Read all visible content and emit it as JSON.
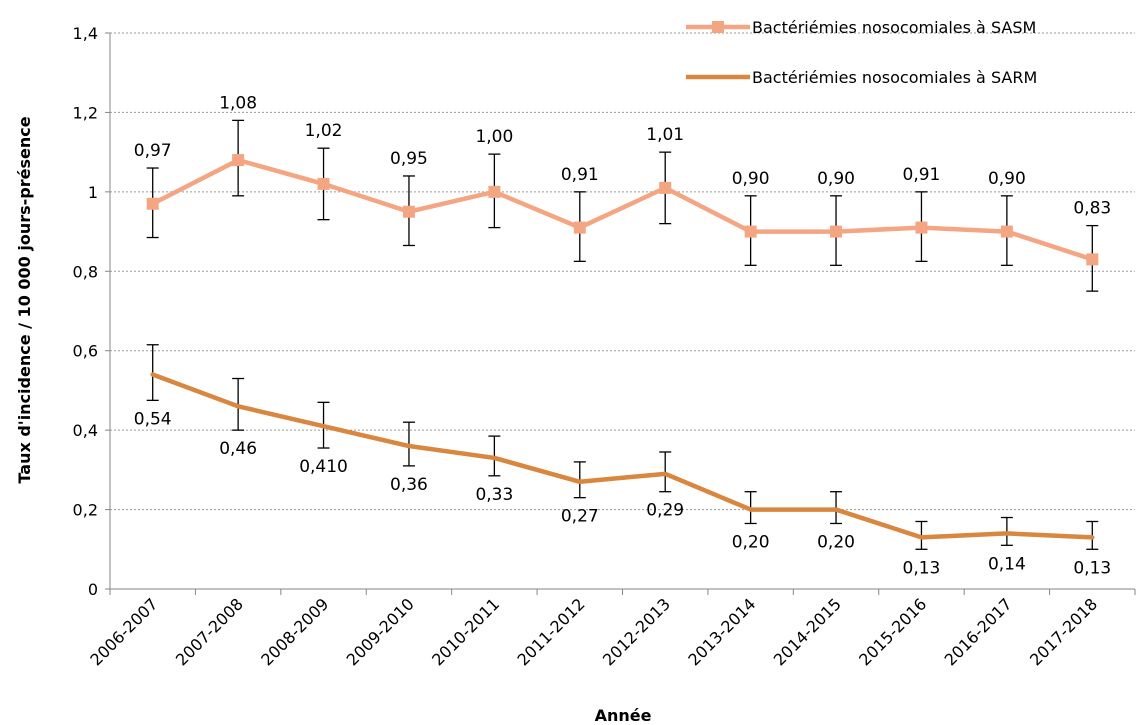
{
  "chart_data": {
    "type": "line",
    "title": "",
    "xlabel": "Année",
    "ylabel": "Taux d'incidence  / 10 000 jours-présence",
    "categories": [
      "2006-2007",
      "2007-2008",
      "2008-2009",
      "2009-2010",
      "2010-2011",
      "2011-2012",
      "2012-2013",
      "2013-2014",
      "2014-2015",
      "2015-2016",
      "2016-2017",
      "2017-2018"
    ],
    "ylim": [
      0,
      1.4
    ],
    "yticks": [
      0,
      0.2,
      0.4,
      0.6,
      0.8,
      1,
      1.2,
      1.4
    ],
    "ytick_labels": [
      "0",
      "0,2",
      "0,4",
      "0,6",
      "0,8",
      "1",
      "1,2",
      "1,4"
    ],
    "grid": "horizontal dotted",
    "legend_position": "top-right",
    "series": [
      {
        "name": "Bactériémies nosocomiales à SASM",
        "color": "#F4A582",
        "marker": "square",
        "values": [
          0.97,
          1.08,
          1.02,
          0.95,
          1.0,
          0.91,
          1.01,
          0.9,
          0.9,
          0.91,
          0.9,
          0.83
        ],
        "labels": [
          "0,97",
          "1,08",
          "1,02",
          "0,95",
          "1,00",
          "0,91",
          "1,01",
          "0,90",
          "0,90",
          "0,91",
          "0,90",
          "0,83"
        ],
        "error_low": [
          0.885,
          0.99,
          0.93,
          0.865,
          0.91,
          0.825,
          0.92,
          0.815,
          0.815,
          0.825,
          0.815,
          0.75
        ],
        "error_high": [
          1.06,
          1.18,
          1.11,
          1.04,
          1.095,
          1.0,
          1.1,
          0.99,
          0.99,
          1.0,
          0.99,
          0.915
        ],
        "label_position": "above"
      },
      {
        "name": "Bactériémies nosocomiales à SARM",
        "color": "#D9863E",
        "marker": "none",
        "values": [
          0.54,
          0.46,
          0.41,
          0.36,
          0.33,
          0.27,
          0.29,
          0.2,
          0.2,
          0.13,
          0.14,
          0.13
        ],
        "labels": [
          "0,54",
          "0,46",
          "0,410",
          "0,36",
          "0,33",
          "0,27",
          "0,29",
          "0,20",
          "0,20",
          "0,13",
          "0,14",
          "0,13"
        ],
        "error_low": [
          0.475,
          0.4,
          0.355,
          0.31,
          0.285,
          0.23,
          0.245,
          0.165,
          0.165,
          0.1,
          0.11,
          0.1
        ],
        "error_high": [
          0.615,
          0.53,
          0.47,
          0.42,
          0.385,
          0.32,
          0.345,
          0.245,
          0.245,
          0.17,
          0.18,
          0.17
        ],
        "label_position": "below"
      }
    ]
  }
}
